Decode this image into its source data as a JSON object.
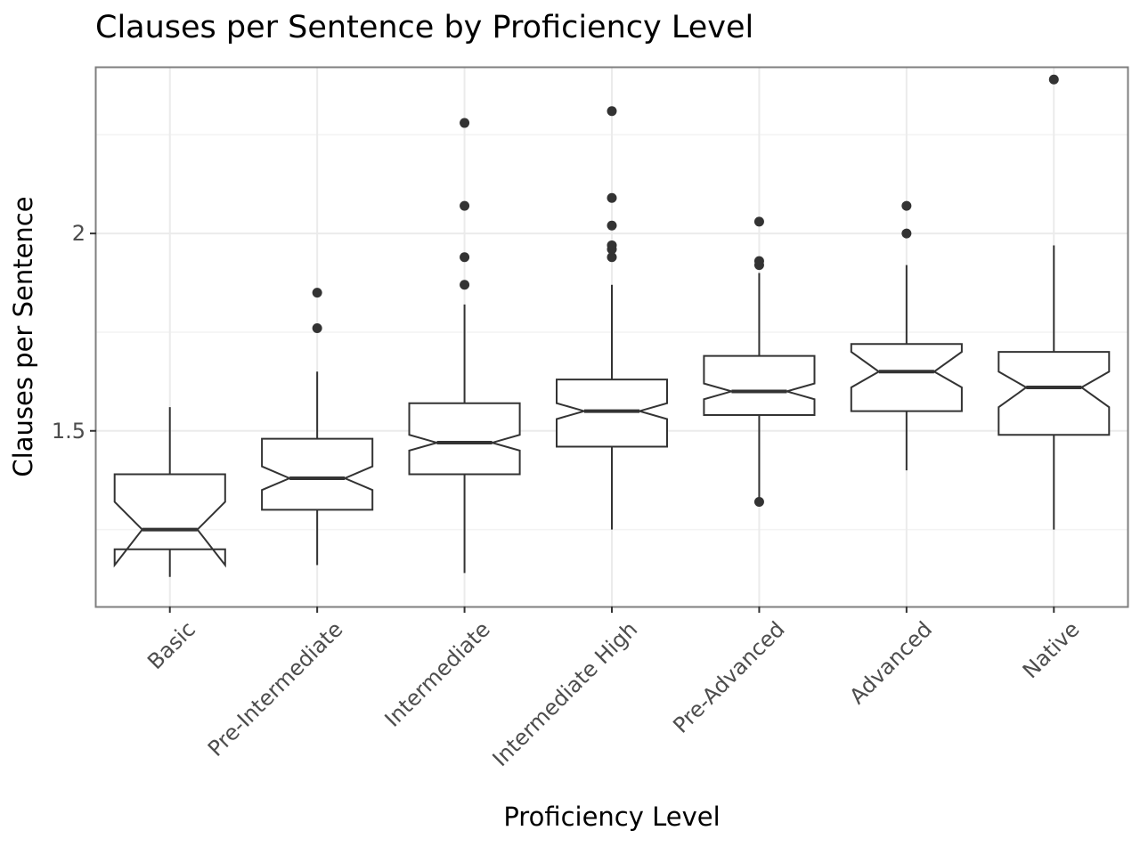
{
  "chart_data": {
    "type": "boxplot",
    "variant": "notched",
    "title": "Clauses per Sentence by Proficiency Level",
    "xlabel": "Proficiency Level",
    "ylabel": "Clauses per Sentence",
    "ylim": [
      1.055,
      2.42
    ],
    "y_ticks": [
      1.5,
      2
    ],
    "y_tick_labels": [
      "1.5",
      "2"
    ],
    "y_minor_ticks": [
      1.25,
      1.75,
      2.25
    ],
    "grid": true,
    "theme": "bw",
    "colors": {
      "box": "#333333",
      "grid": "#ebebeb",
      "panel_border": "#7f7f7f",
      "tick_label": "#4d4d4d"
    },
    "categories": [
      "Basic",
      "Pre-Intermediate",
      "Intermediate",
      "Intermediate High",
      "Pre-Advanced",
      "Advanced",
      "Native"
    ],
    "boxes": [
      {
        "category": "Basic",
        "whisker_low": 1.13,
        "q1": 1.2,
        "median": 1.25,
        "q3": 1.39,
        "whisker_high": 1.56,
        "notch_low": 1.16,
        "notch_high": 1.32,
        "outliers": []
      },
      {
        "category": "Pre-Intermediate",
        "whisker_low": 1.16,
        "q1": 1.3,
        "median": 1.38,
        "q3": 1.48,
        "whisker_high": 1.65,
        "notch_low": 1.35,
        "notch_high": 1.41,
        "outliers": [
          1.76,
          1.85
        ]
      },
      {
        "category": "Intermediate",
        "whisker_low": 1.14,
        "q1": 1.39,
        "median": 1.47,
        "q3": 1.57,
        "whisker_high": 1.82,
        "notch_low": 1.45,
        "notch_high": 1.49,
        "outliers": [
          1.87,
          1.94,
          2.07,
          2.28
        ]
      },
      {
        "category": "Intermediate High",
        "whisker_low": 1.25,
        "q1": 1.46,
        "median": 1.55,
        "q3": 1.63,
        "whisker_high": 1.87,
        "notch_low": 1.53,
        "notch_high": 1.57,
        "outliers": [
          1.94,
          1.96,
          1.97,
          2.02,
          2.09,
          2.31
        ]
      },
      {
        "category": "Pre-Advanced",
        "whisker_low": 1.33,
        "q1": 1.54,
        "median": 1.6,
        "q3": 1.69,
        "whisker_high": 1.9,
        "notch_low": 1.58,
        "notch_high": 1.62,
        "outliers": [
          1.32,
          1.92,
          1.93,
          2.03
        ]
      },
      {
        "category": "Advanced",
        "whisker_low": 1.4,
        "q1": 1.55,
        "median": 1.65,
        "q3": 1.72,
        "whisker_high": 1.92,
        "notch_low": 1.61,
        "notch_high": 1.7,
        "outliers": [
          2.0,
          2.07
        ]
      },
      {
        "category": "Native",
        "whisker_low": 1.25,
        "q1": 1.49,
        "median": 1.61,
        "q3": 1.7,
        "whisker_high": 1.97,
        "notch_low": 1.56,
        "notch_high": 1.65,
        "outliers": [
          2.39
        ]
      }
    ]
  }
}
